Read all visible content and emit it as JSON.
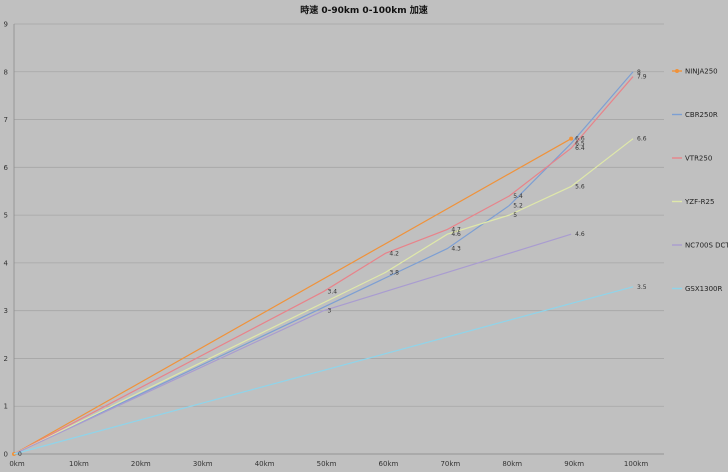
{
  "chart_data": {
    "type": "line",
    "title": "時速 0-90km 0-100km 加速",
    "xlabel": "",
    "ylabel": "",
    "categories": [
      "0km",
      "10km",
      "20km",
      "30km",
      "40km",
      "50km",
      "60km",
      "70km",
      "80km",
      "90km",
      "100km"
    ],
    "x": [
      0,
      10,
      20,
      30,
      40,
      50,
      60,
      70,
      80,
      90,
      100
    ],
    "ylim": [
      0,
      9
    ],
    "yticks": [
      "0",
      "1",
      "2",
      "3",
      "4",
      "5",
      "6",
      "7",
      "8",
      "9"
    ],
    "grid": true,
    "legend_position": "right",
    "series": [
      {
        "name": "NINJA250",
        "color": "#f0923a",
        "marker": "circle",
        "points": [
          [
            0,
            0
          ],
          [
            90,
            6.6
          ]
        ],
        "labels": [
          {
            "x": 0,
            "y": 0,
            "text": "0"
          },
          {
            "x": 90,
            "y": 6.6,
            "text": "6.6"
          }
        ]
      },
      {
        "name": "CBR250R",
        "color": "#7d9fd3",
        "marker": "none",
        "points": [
          [
            0,
            0
          ],
          [
            70,
            4.3
          ],
          [
            80,
            5.2
          ],
          [
            90,
            6.5
          ],
          [
            100,
            8.0
          ]
        ],
        "labels": [
          {
            "x": 70,
            "y": 4.3,
            "text": "4.3"
          },
          {
            "x": 80,
            "y": 5.2,
            "text": "5.2"
          },
          {
            "x": 90,
            "y": 6.5,
            "text": "6.5"
          },
          {
            "x": 100,
            "y": 8.0,
            "text": "8"
          }
        ]
      },
      {
        "name": "VTR250",
        "color": "#e8838a",
        "marker": "none",
        "points": [
          [
            0,
            0
          ],
          [
            50,
            3.4
          ],
          [
            60,
            4.2
          ],
          [
            70,
            4.7
          ],
          [
            80,
            5.4
          ],
          [
            90,
            6.4
          ],
          [
            100,
            7.9
          ]
        ],
        "labels": [
          {
            "x": 50,
            "y": 3.4,
            "text": "3.4"
          },
          {
            "x": 60,
            "y": 4.2,
            "text": "4.2"
          },
          {
            "x": 70,
            "y": 4.7,
            "text": "4.7"
          },
          {
            "x": 80,
            "y": 5.4,
            "text": "5.4"
          },
          {
            "x": 90,
            "y": 6.4,
            "text": "6.4"
          },
          {
            "x": 100,
            "y": 7.9,
            "text": "7.9"
          }
        ]
      },
      {
        "name": "YZF-R25",
        "color": "#dfe8a9",
        "marker": "none",
        "points": [
          [
            0,
            0
          ],
          [
            60,
            3.8
          ],
          [
            70,
            4.6
          ],
          [
            80,
            5.0
          ],
          [
            90,
            5.6
          ],
          [
            100,
            6.6
          ]
        ],
        "labels": [
          {
            "x": 60,
            "y": 3.8,
            "text": "3.8"
          },
          {
            "x": 70,
            "y": 4.6,
            "text": "4.6"
          },
          {
            "x": 80,
            "y": 5.0,
            "text": "5"
          },
          {
            "x": 90,
            "y": 5.6,
            "text": "5.6"
          },
          {
            "x": 100,
            "y": 6.6,
            "text": "6.6"
          }
        ]
      },
      {
        "name": "NC700S DCT",
        "color": "#a99cd0",
        "marker": "none",
        "points": [
          [
            0,
            0
          ],
          [
            50,
            3.0
          ],
          [
            90,
            4.6
          ]
        ],
        "labels": [
          {
            "x": 50,
            "y": 3.0,
            "text": "3"
          },
          {
            "x": 90,
            "y": 4.6,
            "text": "4.6"
          }
        ]
      },
      {
        "name": "GSX1300R",
        "color": "#8fd4ea",
        "marker": "none",
        "points": [
          [
            0,
            0
          ],
          [
            100,
            3.5
          ]
        ],
        "labels": [
          {
            "x": 100,
            "y": 3.5,
            "text": "3.5"
          }
        ]
      }
    ]
  }
}
